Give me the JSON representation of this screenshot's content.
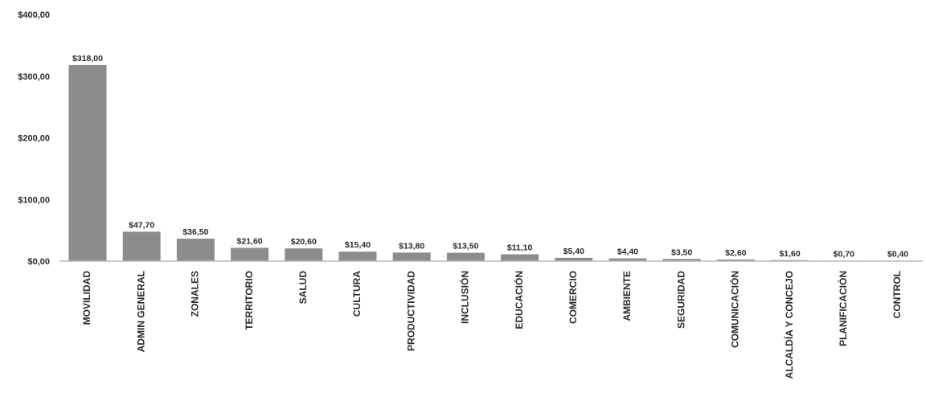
{
  "chart_data": {
    "type": "bar",
    "title": "",
    "xlabel": "",
    "ylabel": "",
    "ylim": [
      0,
      400
    ],
    "grid": false,
    "bar_color": "#8c8c8c",
    "y_ticks": [
      {
        "value": 0,
        "label": "$0,00"
      },
      {
        "value": 100,
        "label": "$100,00"
      },
      {
        "value": 200,
        "label": "$200,00"
      },
      {
        "value": 300,
        "label": "$300,00"
      },
      {
        "value": 400,
        "label": "$400,00"
      }
    ],
    "categories": [
      "MOVILIDAD",
      "ADMIN GENERAL",
      "ZONALES",
      "TERRITORIO",
      "SALUD",
      "CULTURA",
      "PRODUCTIVIDAD",
      "INCLUSIÓN",
      "EDUCACIÓN",
      "COMERCIO",
      "AMBIENTE",
      "SEGURIDAD",
      "COMUNICACIÓN",
      "ALCALDÍA Y CONCEJO",
      "PLANIFICACIÓN",
      "CONTROL"
    ],
    "values": [
      318.0,
      47.7,
      36.5,
      21.6,
      20.6,
      15.4,
      13.8,
      13.5,
      11.1,
      5.4,
      4.4,
      3.5,
      2.6,
      1.6,
      0.7,
      0.4
    ],
    "value_labels": [
      "$318,00",
      "$47,70",
      "$36,50",
      "$21,60",
      "$20,60",
      "$15,40",
      "$13,80",
      "$13,50",
      "$11,10",
      "$5,40",
      "$4,40",
      "$3,50",
      "$2,60",
      "$1,60",
      "$0,70",
      "$0,40"
    ]
  }
}
